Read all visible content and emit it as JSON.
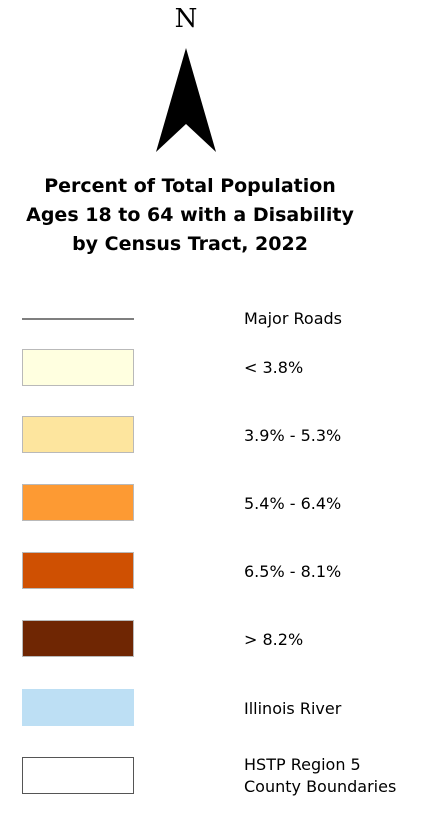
{
  "north_arrow": {
    "letter": "N",
    "icon": "north-arrow-icon"
  },
  "title": {
    "line1": "Percent of Total Population",
    "line2": "Ages 18 to 64 with a Disability",
    "line3": "by Census Tract, 2022"
  },
  "legend": {
    "items": [
      {
        "label": "Major Roads",
        "type": "line",
        "color": "#7f7f7f"
      },
      {
        "label": "< 3.8%",
        "type": "fill",
        "color": "#ffffe0"
      },
      {
        "label": "3.9% - 5.3%",
        "type": "fill",
        "color": "#fde59e"
      },
      {
        "label": "5.4% - 6.4%",
        "type": "fill",
        "color": "#fd9a33"
      },
      {
        "label": "6.5% - 8.1%",
        "type": "fill",
        "color": "#cf5002"
      },
      {
        "label": "> 8.2%",
        "type": "fill",
        "color": "#6f2603"
      },
      {
        "label": "Illinois River",
        "type": "fill",
        "color": "#bddff4"
      },
      {
        "label_line1": "HSTP Region 5",
        "label_line2": "County Boundaries",
        "type": "outline",
        "color": "#ffffff"
      }
    ]
  }
}
